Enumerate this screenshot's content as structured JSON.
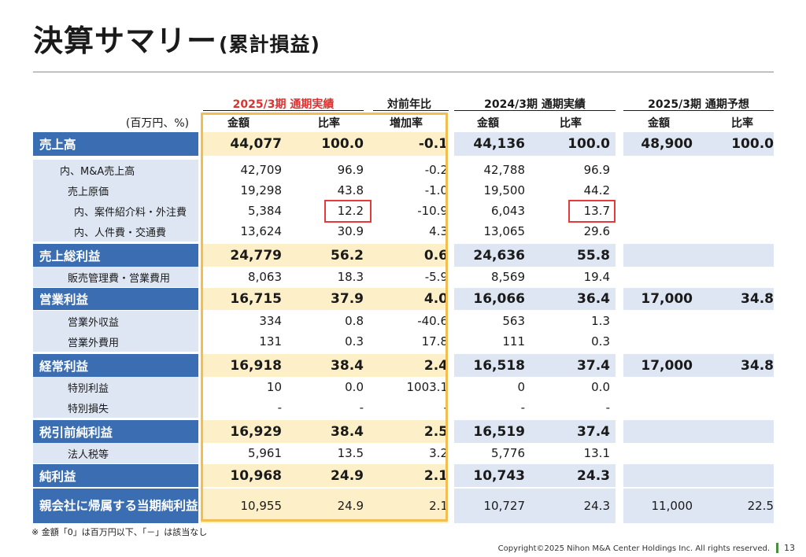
{
  "title": "決算サマリー",
  "subtitle": "(累計損益)",
  "unit_label": "(百万円、%)",
  "headers": {
    "group1": "2025/3期 通期実績",
    "group_yoy": "対前年比",
    "group2": "2024/3期 通期実績",
    "group3": "2025/3期 通期予想",
    "amount": "金額",
    "ratio": "比率",
    "increase_rate": "増加率"
  },
  "rows": [
    {
      "label": "売上高",
      "type": "major",
      "values": [
        "44,077",
        "100.0",
        "-0.1",
        "44,136",
        "100.0",
        "48,900",
        "100.0"
      ]
    },
    {
      "label": "内、M&A売上高",
      "type": "sub",
      "indent": 1,
      "values": [
        "42,709",
        "96.9",
        "-0.2",
        "42,788",
        "96.9",
        "",
        ""
      ]
    },
    {
      "label": "売上原価",
      "type": "sub",
      "indent": 2,
      "values": [
        "19,298",
        "43.8",
        "-1.0",
        "19,500",
        "44.2",
        "",
        ""
      ]
    },
    {
      "label": "内、案件紹介料・外注費",
      "type": "sub",
      "indent": 3,
      "values": [
        "5,384",
        "12.2",
        "-10.9",
        "6,043",
        "13.7",
        "",
        ""
      ]
    },
    {
      "label": "内、人件費・交通費",
      "type": "sub",
      "indent": 3,
      "values": [
        "13,624",
        "30.9",
        "4.3",
        "13,065",
        "29.6",
        "",
        ""
      ]
    },
    {
      "label": "売上総利益",
      "type": "major",
      "values": [
        "24,779",
        "56.2",
        "0.6",
        "24,636",
        "55.8",
        "",
        ""
      ]
    },
    {
      "label": "販売管理費・営業費用",
      "type": "sub",
      "indent": 2,
      "values": [
        "8,063",
        "18.3",
        "-5.9",
        "8,569",
        "19.4",
        "",
        ""
      ]
    },
    {
      "label": "営業利益",
      "type": "major",
      "values": [
        "16,715",
        "37.9",
        "4.0",
        "16,066",
        "36.4",
        "17,000",
        "34.8"
      ]
    },
    {
      "label": "営業外収益",
      "type": "sub",
      "indent": 2,
      "values": [
        "334",
        "0.8",
        "-40.6",
        "563",
        "1.3",
        "",
        ""
      ]
    },
    {
      "label": "営業外費用",
      "type": "sub",
      "indent": 2,
      "values": [
        "131",
        "0.3",
        "17.8",
        "111",
        "0.3",
        "",
        ""
      ]
    },
    {
      "label": "経常利益",
      "type": "major",
      "values": [
        "16,918",
        "38.4",
        "2.4",
        "16,518",
        "37.4",
        "17,000",
        "34.8"
      ]
    },
    {
      "label": "特別利益",
      "type": "sub",
      "indent": 2,
      "values": [
        "10",
        "0.0",
        "1003.1",
        "0",
        "0.0",
        "",
        ""
      ]
    },
    {
      "label": "特別損失",
      "type": "sub",
      "indent": 2,
      "values": [
        "-",
        "-",
        "-",
        "-",
        "-",
        "",
        ""
      ]
    },
    {
      "label": "税引前純利益",
      "type": "major",
      "values": [
        "16,929",
        "38.4",
        "2.5",
        "16,519",
        "37.4",
        "",
        ""
      ]
    },
    {
      "label": "法人税等",
      "type": "sub",
      "indent": 2,
      "values": [
        "5,961",
        "13.5",
        "3.2",
        "5,776",
        "13.1",
        "",
        ""
      ]
    },
    {
      "label": "純利益",
      "type": "major",
      "values": [
        "10,968",
        "24.9",
        "2.1",
        "10,743",
        "24.3",
        "",
        ""
      ]
    },
    {
      "label": "親会社に帰属する当期純利益",
      "type": "major",
      "multi": true,
      "values": [
        "10,955",
        "24.9",
        "2.1",
        "10,727",
        "24.3",
        "11,000",
        "22.5"
      ]
    }
  ],
  "note": "※ 金額「0」は百万円以下、「－」は該当なし",
  "copyright": "Copyright©2025 Nihon M&A Center Holdings Inc. All rights reserved.",
  "page_number": "13",
  "colors": {
    "label_blue": "#3a6db1",
    "light_blue": "#dde6f2",
    "light_yellow": "#fdf0c9",
    "frame_yellow": "#f2be4f",
    "highlight_red": "#e53a3a",
    "header_red": "#e03030"
  }
}
